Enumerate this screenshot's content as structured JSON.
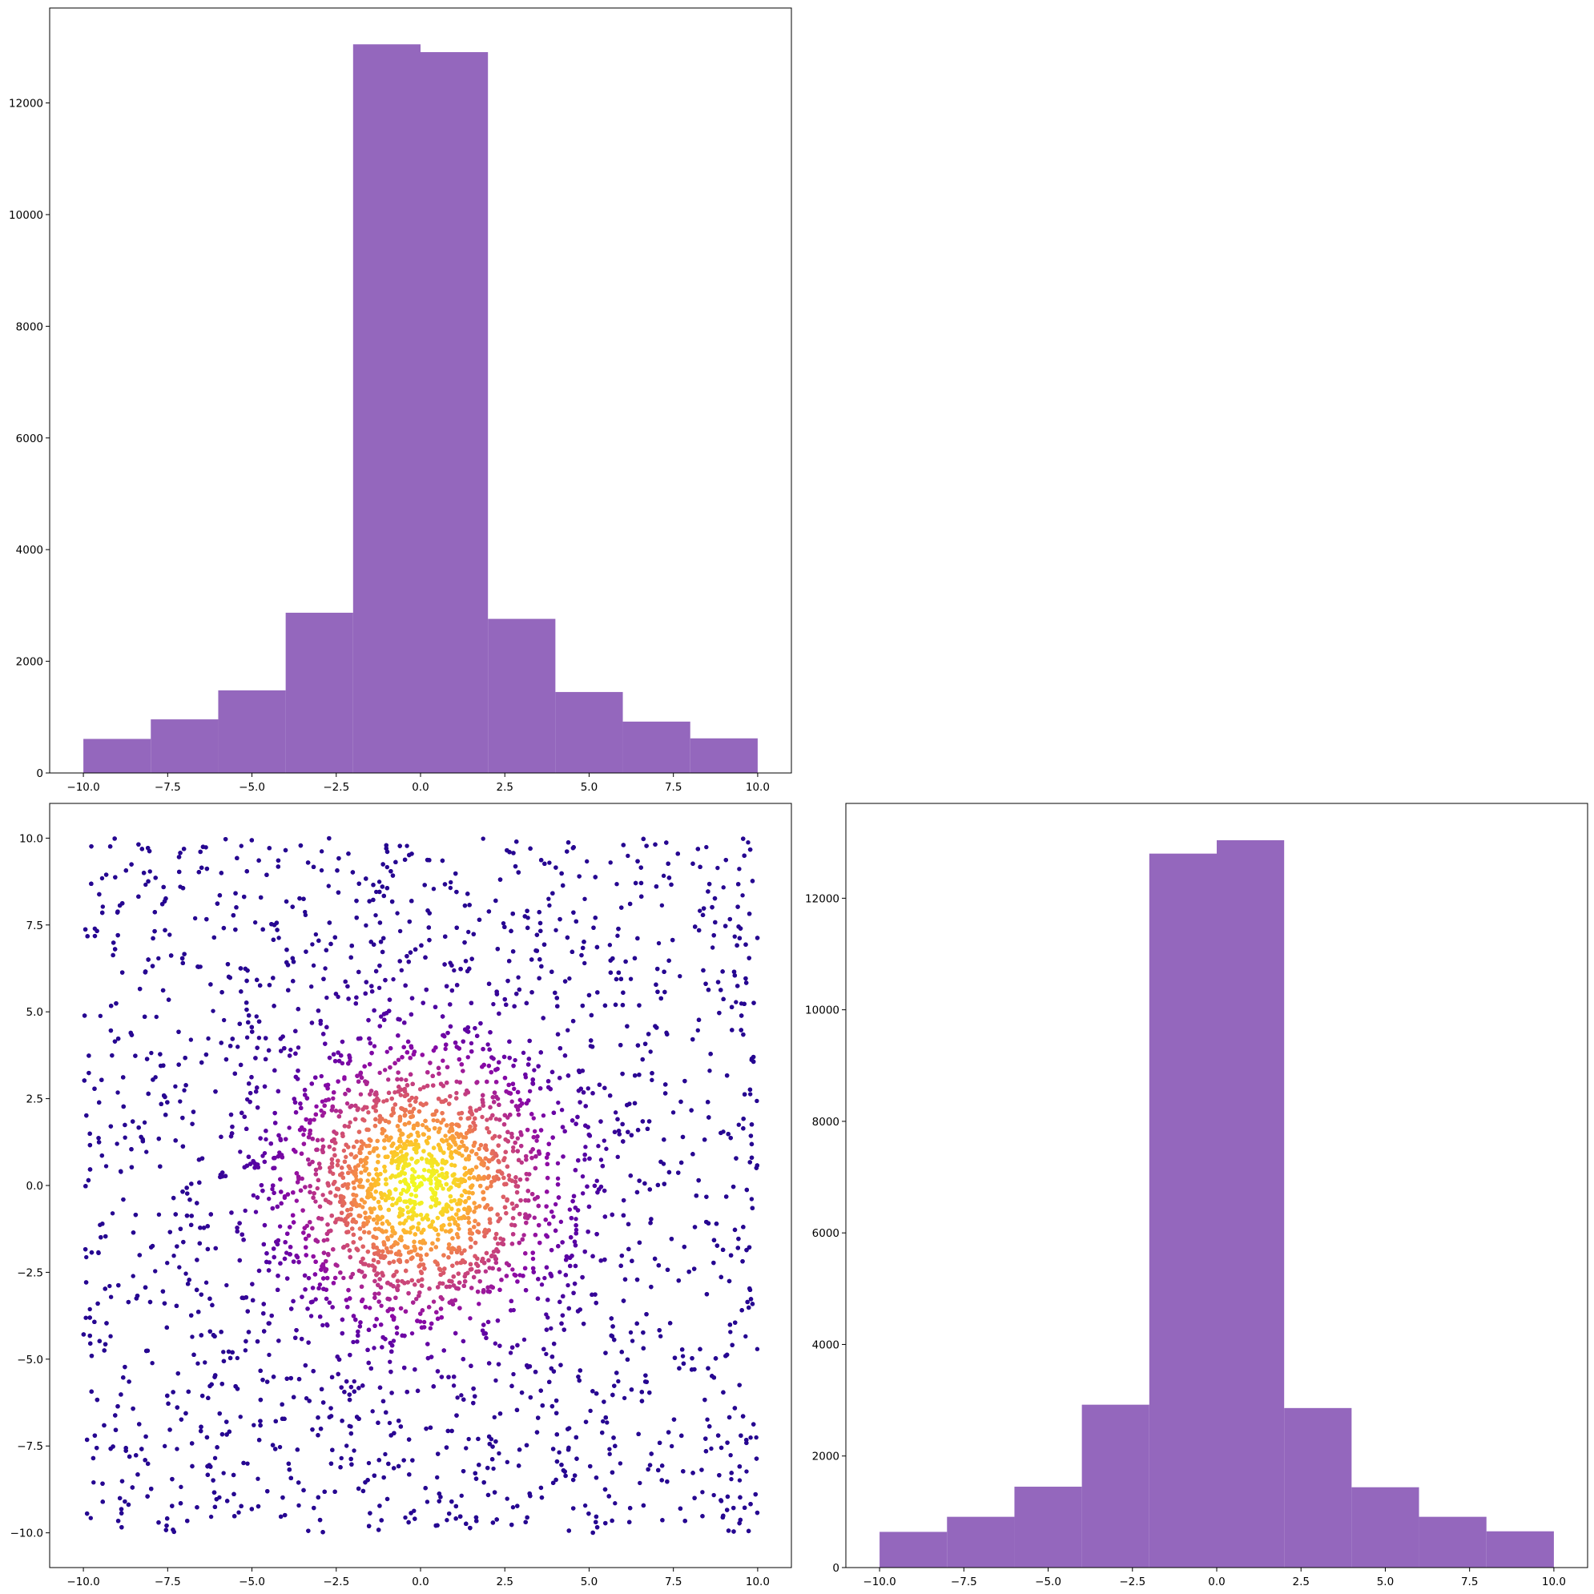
{
  "figure": {
    "background": "#ffffff",
    "layout": "corner-plot",
    "empty_cell": "top-right"
  },
  "chart_data": [
    {
      "id": "hist-x",
      "position": "top-left",
      "type": "bar",
      "style": "histogram",
      "bin_edges": [
        -10,
        -8,
        -6,
        -4,
        -2,
        0,
        2,
        4,
        6,
        8,
        10
      ],
      "values": [
        610,
        960,
        1480,
        2870,
        13050,
        12910,
        2760,
        1450,
        920,
        620
      ],
      "color": "#9467bd",
      "xlim": [
        -11,
        11
      ],
      "ylim": [
        0,
        13700
      ],
      "xticks": [
        -10,
        -7.5,
        -5,
        -2.5,
        0,
        2.5,
        5,
        7.5,
        10
      ],
      "xtick_labels": [
        "−10.0",
        "−7.5",
        "−5.0",
        "−2.5",
        "0.0",
        "2.5",
        "5.0",
        "7.5",
        "10.0"
      ],
      "yticks": [
        0,
        2000,
        4000,
        6000,
        8000,
        10000,
        12000
      ],
      "ytick_labels": [
        "0",
        "2000",
        "4000",
        "6000",
        "8000",
        "10000",
        "12000"
      ],
      "grid": false
    },
    {
      "id": "scatter-xy",
      "position": "bottom-left",
      "type": "scatter",
      "x_range": [
        -10,
        10
      ],
      "y_range": [
        -10,
        10
      ],
      "points_shown": 9000,
      "colormap": "plasma",
      "color_by": "local point density",
      "color_low": "#2c0594",
      "color_high": "#f0f921",
      "xlim": [
        -11,
        11
      ],
      "ylim": [
        -11,
        11
      ],
      "xticks": [
        -10,
        -7.5,
        -5,
        -2.5,
        0,
        2.5,
        5,
        7.5,
        10
      ],
      "xtick_labels": [
        "−10.0",
        "−7.5",
        "−5.0",
        "−2.5",
        "0.0",
        "2.5",
        "5.0",
        "7.5",
        "10.0"
      ],
      "yticks": [
        -10,
        -7.5,
        -5,
        -2.5,
        0,
        2.5,
        5,
        7.5,
        10
      ],
      "ytick_labels": [
        "−10.0",
        "−7.5",
        "−5.0",
        "−2.5",
        "0.0",
        "2.5",
        "5.0",
        "7.5",
        "10.0"
      ],
      "grid": false
    },
    {
      "id": "hist-y",
      "position": "bottom-right",
      "type": "bar",
      "style": "histogram",
      "bin_edges": [
        -10,
        -8,
        -6,
        -4,
        -2,
        0,
        2,
        4,
        6,
        8,
        10
      ],
      "values": [
        640,
        910,
        1450,
        2920,
        12800,
        13040,
        2860,
        1440,
        910,
        650
      ],
      "color": "#9467bd",
      "xlim": [
        -11,
        11
      ],
      "ylim": [
        0,
        13700
      ],
      "xticks": [
        -10,
        -7.5,
        -5,
        -2.5,
        0,
        2.5,
        5,
        7.5,
        10
      ],
      "xtick_labels": [
        "−10.0",
        "−7.5",
        "−5.0",
        "−2.5",
        "0.0",
        "2.5",
        "5.0",
        "7.5",
        "10.0"
      ],
      "yticks": [
        0,
        2000,
        4000,
        6000,
        8000,
        10000,
        12000
      ],
      "ytick_labels": [
        "0",
        "2000",
        "4000",
        "6000",
        "8000",
        "10000",
        "12000"
      ],
      "grid": false
    }
  ]
}
